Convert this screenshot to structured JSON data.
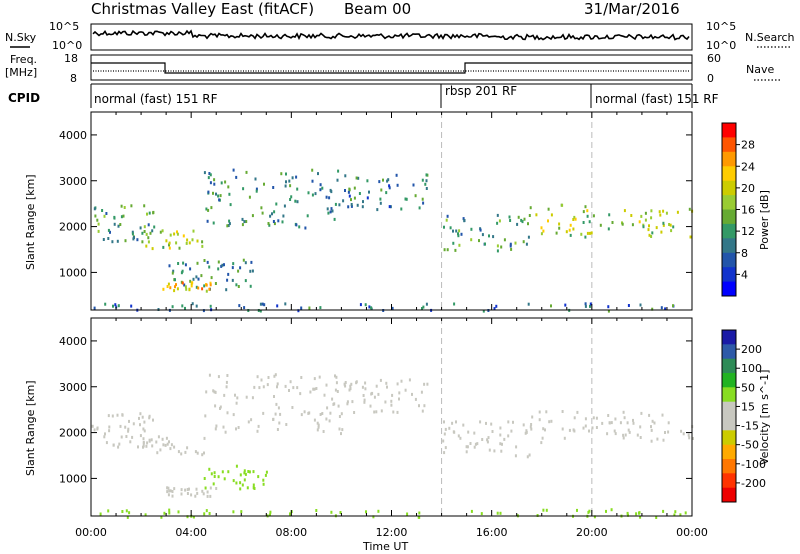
{
  "header": {
    "title": "Christmas Valley East (fitACF)",
    "beam": "Beam 00",
    "date": "31/Mar/2016"
  },
  "sky_panel": {
    "left_label": "N.Sky",
    "right_label": "N.Search",
    "left_ticks": [
      "10^5",
      "10^0"
    ],
    "right_ticks": [
      "10^5",
      "10^0"
    ]
  },
  "freq_panel": {
    "left_label_line1": "Freq.",
    "left_label_line2": "[MHz]",
    "right_label": "Nave",
    "left_ticks": [
      "18",
      "8"
    ],
    "right_ticks": [
      "60",
      "0"
    ]
  },
  "cpid": {
    "label": "CPID",
    "segments": [
      {
        "text": "normal (fast) 151 RF",
        "start_h": 0
      },
      {
        "text": "rbsp 201 RF",
        "start_h": 14
      },
      {
        "text": "normal (fast) 151 RF",
        "start_h": 20
      }
    ]
  },
  "x_axis": {
    "label": "Time UT",
    "ticks": [
      "00:00",
      "04:00",
      "08:00",
      "12:00",
      "16:00",
      "20:00",
      "00:00"
    ]
  },
  "colorbars": {
    "power": {
      "label": "Power [dB]",
      "ticks": [
        "28",
        "24",
        "20",
        "16",
        "12",
        "8",
        "4"
      ],
      "colors": [
        "#ff0000",
        "#ff5500",
        "#ff9900",
        "#ffcc00",
        "#cccc00",
        "#99cc33",
        "#66aa33",
        "#339966",
        "#337788",
        "#2255aa",
        "#1133cc",
        "#0000ff"
      ]
    },
    "velocity": {
      "label": "Velocity [m s^-1]",
      "ticks": [
        "200",
        "100",
        "50",
        "15",
        "-15",
        "-50",
        "-100",
        "-200"
      ],
      "colors": [
        "#1a1aa6",
        "#2e5aa8",
        "#2e8b57",
        "#22b322",
        "#88dd22",
        "#c8c8c0",
        "#c8c8c0",
        "#cccc00",
        "#ffaa00",
        "#ff7700",
        "#ff3300",
        "#ee0000"
      ]
    }
  },
  "chart_data": [
    {
      "type": "heatmap",
      "name": "Power",
      "ylabel": "Slant Range [km]",
      "xlabel": "Time UT",
      "xlim": [
        0,
        24
      ],
      "ylim": [
        180,
        4500
      ],
      "yticks": [
        1000,
        2000,
        3000,
        4000
      ],
      "zlim": [
        0,
        30
      ],
      "scatter_regions": [
        {
          "t0": 0.0,
          "t1": 2.5,
          "r0": 1700,
          "r1": 2500,
          "z": 12
        },
        {
          "t0": 2.0,
          "t1": 4.5,
          "r0": 1550,
          "r1": 1950,
          "z": 16
        },
        {
          "t0": 2.5,
          "t1": 6.5,
          "r0": 650,
          "r1": 1300,
          "z": 10
        },
        {
          "t0": 2.8,
          "t1": 4.8,
          "r0": 620,
          "r1": 820,
          "z": 22
        },
        {
          "t0": 4.5,
          "t1": 10.0,
          "r0": 2000,
          "r1": 3300,
          "z": 10
        },
        {
          "t0": 10.0,
          "t1": 13.5,
          "r0": 2400,
          "r1": 3200,
          "z": 9
        },
        {
          "t0": 14.0,
          "t1": 17.5,
          "r0": 1500,
          "r1": 2300,
          "z": 12
        },
        {
          "t0": 17.5,
          "t1": 24.0,
          "r0": 1800,
          "r1": 2500,
          "z": 16
        },
        {
          "t0": 0.0,
          "t1": 24.0,
          "r0": 180,
          "r1": 350,
          "z": 8
        }
      ]
    },
    {
      "type": "heatmap",
      "name": "Velocity",
      "ylabel": "Slant Range [km]",
      "xlabel": "Time UT",
      "xlim": [
        0,
        24
      ],
      "ylim": [
        180,
        4500
      ],
      "yticks": [
        1000,
        2000,
        3000,
        4000
      ],
      "zlim": [
        -200,
        200
      ],
      "scatter_regions": [
        {
          "t0": 0.0,
          "t1": 2.5,
          "r0": 1700,
          "r1": 2500,
          "z": 0
        },
        {
          "t0": 2.0,
          "t1": 4.5,
          "r0": 1550,
          "r1": 1950,
          "z": 0
        },
        {
          "t0": 2.8,
          "t1": 5.0,
          "r0": 620,
          "r1": 850,
          "z": 0
        },
        {
          "t0": 4.5,
          "t1": 7.0,
          "r0": 800,
          "r1": 1300,
          "z": 40
        },
        {
          "t0": 4.5,
          "t1": 10.0,
          "r0": 2000,
          "r1": 3300,
          "z": 0
        },
        {
          "t0": 10.0,
          "t1": 13.5,
          "r0": 2400,
          "r1": 3200,
          "z": 5
        },
        {
          "t0": 14.0,
          "t1": 17.5,
          "r0": 1500,
          "r1": 2300,
          "z": 0
        },
        {
          "t0": 17.5,
          "t1": 24.0,
          "r0": 1800,
          "r1": 2500,
          "z": 0
        },
        {
          "t0": 0.0,
          "t1": 24.0,
          "r0": 180,
          "r1": 350,
          "z": 40
        }
      ]
    }
  ]
}
